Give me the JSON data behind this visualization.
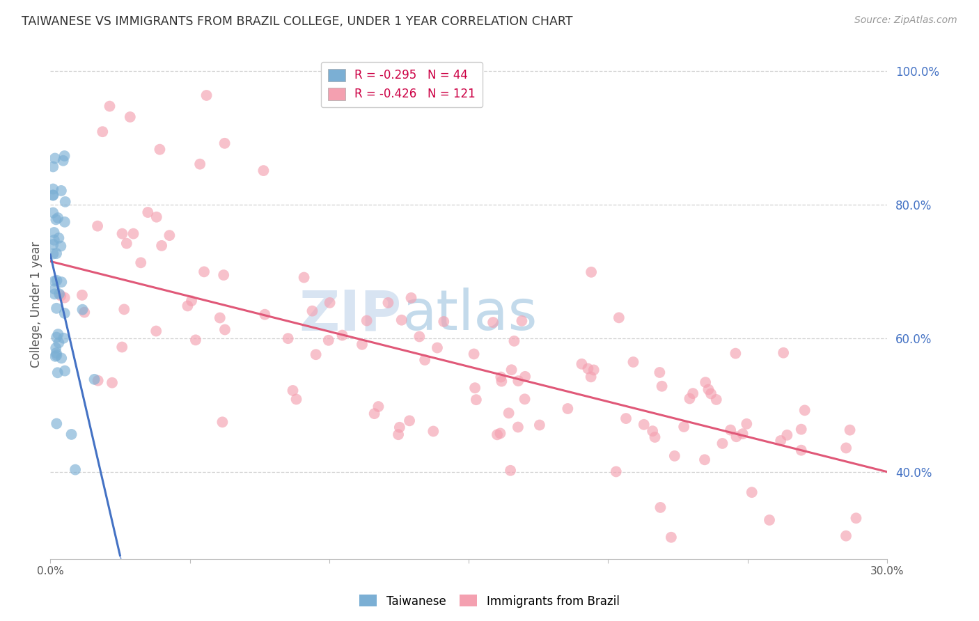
{
  "title": "TAIWANESE VS IMMIGRANTS FROM BRAZIL COLLEGE, UNDER 1 YEAR CORRELATION CHART",
  "source": "Source: ZipAtlas.com",
  "ylabel": "College, Under 1 year",
  "watermark": "ZIPatlas",
  "r_taiwanese": -0.295,
  "n_taiwanese": 44,
  "r_brazil": -0.426,
  "n_brazil": 121,
  "xlim": [
    0.0,
    0.3
  ],
  "ylim": [
    0.27,
    1.03
  ],
  "right_yticks": [
    0.4,
    0.6,
    0.8,
    1.0
  ],
  "right_yticklabels": [
    "40.0%",
    "60.0%",
    "80.0%",
    "100.0%"
  ],
  "color_taiwanese": "#7bafd4",
  "color_brazil": "#f4a0b0",
  "color_taiwanese_line": "#4472c4",
  "color_brazil_line": "#e05878",
  "background_color": "#ffffff",
  "grid_color": "#cccccc",
  "intercept_tw": 0.725,
  "slope_tw": -18.0,
  "intercept_br": 0.715,
  "slope_br": -1.05
}
